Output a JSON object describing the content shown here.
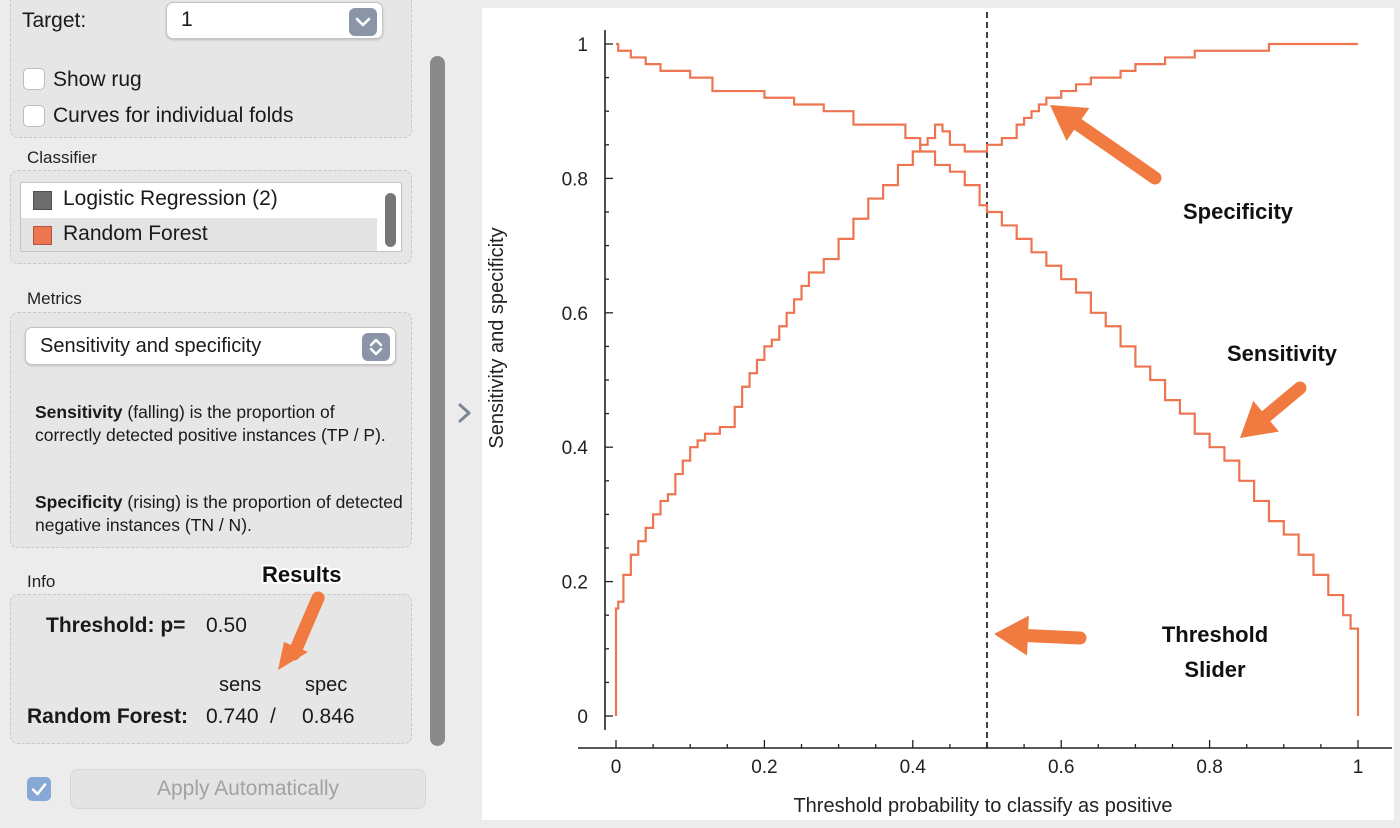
{
  "target": {
    "label": "Target:",
    "value": "1"
  },
  "options": {
    "show_rug": "Show rug",
    "individual_folds": "Curves for individual folds"
  },
  "classifier": {
    "title": "Classifier",
    "items": [
      {
        "label": "Logistic Regression (2)",
        "color": "#6d6d6d",
        "selected": false
      },
      {
        "label": "Random Forest",
        "color": "#ee7552",
        "selected": true
      }
    ]
  },
  "metrics": {
    "title": "Metrics",
    "selected": "Sensitivity and specificity",
    "sens_term": "Sensitivity",
    "sens_desc": "(falling) is the proportion of correctly detected positive instances (TP / P).",
    "spec_term": "Specificity",
    "spec_desc": "(rising) is the proportion of detected negative instances (TN / N)."
  },
  "info": {
    "title": "Info",
    "threshold_label": "Threshold: p=",
    "threshold_value": "0.50",
    "col_sens": "sens",
    "col_spec": "spec",
    "model": "Random Forest:",
    "sens_value": "0.740",
    "separator": "/",
    "spec_value": "0.846"
  },
  "apply": {
    "label": "Apply Automatically",
    "checked": true
  },
  "annotations": {
    "results": "Results",
    "specificity": "Specificity",
    "sensitivity": "Sensitivity",
    "threshold_1": "Threshold",
    "threshold_2": "Slider"
  },
  "colors": {
    "curve": "#ee7552",
    "arrow": "#f07a3f"
  },
  "chart_data": {
    "type": "line",
    "xlabel": "Threshold probability to classify as positive",
    "ylabel": "Sensitivity and specificity",
    "xlim": [
      0,
      1
    ],
    "ylim": [
      0,
      1
    ],
    "x_ticks": [
      "0",
      "0.2",
      "0.4",
      "0.6",
      "0.8",
      "1"
    ],
    "y_ticks": [
      "0",
      "0.2",
      "0.4",
      "0.6",
      "0.8",
      "1"
    ],
    "threshold": 0.5,
    "series": [
      {
        "name": "Specificity",
        "x": [
          0,
          0.0,
          0.003,
          0.01,
          0.02,
          0.03,
          0.04,
          0.05,
          0.06,
          0.07,
          0.08,
          0.09,
          0.1,
          0.11,
          0.12,
          0.14,
          0.16,
          0.17,
          0.18,
          0.19,
          0.2,
          0.21,
          0.22,
          0.23,
          0.24,
          0.25,
          0.26,
          0.28,
          0.3,
          0.32,
          0.34,
          0.36,
          0.38,
          0.4,
          0.41,
          0.42,
          0.43,
          0.44,
          0.45,
          0.46,
          0.47,
          0.48,
          0.5,
          0.52,
          0.54,
          0.55,
          0.56,
          0.57,
          0.58,
          0.6,
          0.62,
          0.64,
          0.66,
          0.68,
          0.7,
          0.72,
          0.74,
          0.76,
          0.78,
          0.8,
          0.84,
          0.88,
          0.92,
          0.96,
          1.0
        ],
        "y": [
          0.0,
          0.16,
          0.17,
          0.21,
          0.24,
          0.26,
          0.28,
          0.3,
          0.32,
          0.33,
          0.36,
          0.38,
          0.4,
          0.41,
          0.42,
          0.43,
          0.46,
          0.49,
          0.51,
          0.53,
          0.55,
          0.56,
          0.58,
          0.6,
          0.62,
          0.64,
          0.66,
          0.68,
          0.71,
          0.74,
          0.77,
          0.79,
          0.82,
          0.84,
          0.85,
          0.86,
          0.88,
          0.87,
          0.85,
          0.85,
          0.84,
          0.84,
          0.85,
          0.86,
          0.88,
          0.89,
          0.9,
          0.91,
          0.92,
          0.93,
          0.94,
          0.95,
          0.95,
          0.96,
          0.97,
          0.97,
          0.98,
          0.98,
          0.99,
          0.99,
          0.99,
          1.0,
          1.0,
          1.0,
          1.0
        ]
      },
      {
        "name": "Sensitivity",
        "x": [
          0,
          0.003,
          0.02,
          0.04,
          0.06,
          0.08,
          0.1,
          0.13,
          0.16,
          0.2,
          0.24,
          0.28,
          0.32,
          0.36,
          0.39,
          0.41,
          0.43,
          0.45,
          0.47,
          0.49,
          0.5,
          0.52,
          0.54,
          0.56,
          0.58,
          0.6,
          0.62,
          0.64,
          0.66,
          0.68,
          0.7,
          0.72,
          0.74,
          0.76,
          0.78,
          0.8,
          0.82,
          0.84,
          0.86,
          0.88,
          0.9,
          0.92,
          0.94,
          0.96,
          0.98,
          0.99,
          1.0,
          1.0
        ],
        "y": [
          1.0,
          0.99,
          0.98,
          0.97,
          0.96,
          0.96,
          0.95,
          0.93,
          0.93,
          0.92,
          0.91,
          0.9,
          0.88,
          0.88,
          0.86,
          0.84,
          0.82,
          0.81,
          0.79,
          0.76,
          0.75,
          0.73,
          0.71,
          0.69,
          0.67,
          0.65,
          0.63,
          0.6,
          0.58,
          0.55,
          0.52,
          0.5,
          0.47,
          0.45,
          0.42,
          0.4,
          0.38,
          0.35,
          0.32,
          0.29,
          0.27,
          0.24,
          0.21,
          0.18,
          0.15,
          0.13,
          0.12,
          0.0
        ]
      }
    ]
  }
}
